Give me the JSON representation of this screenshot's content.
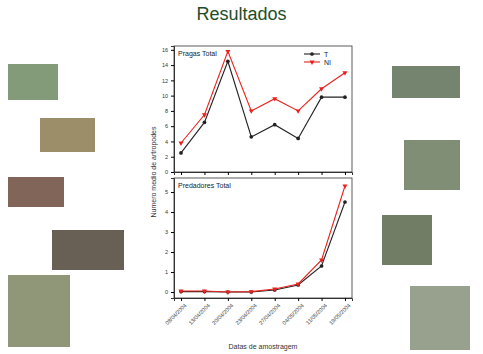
{
  "title": "Resultados",
  "y_label": "Numero medio de artropodes",
  "chart_data": [
    {
      "type": "line",
      "title": "Pragas Total",
      "categories": [
        "08/04/2004",
        "13/04/2004",
        "20/04/2004",
        "23/04/2004",
        "27/04/2004",
        "04/05/2004",
        "11/05/2004",
        "19/05/2004"
      ],
      "series": [
        {
          "name": "T",
          "color": "#222222",
          "marker": "circle",
          "values": [
            2.5,
            6.5,
            14.5,
            4.6,
            6.2,
            4.4,
            9.8,
            9.8
          ]
        },
        {
          "name": "NI",
          "color": "#e8231f",
          "marker": "triangle",
          "values": [
            3.8,
            7.5,
            15.8,
            8.0,
            9.6,
            8.0,
            10.9,
            13.0
          ]
        }
      ],
      "ylim": [
        0,
        16.5
      ],
      "yticks": [
        0,
        2,
        4,
        6,
        8,
        10,
        12,
        14,
        16
      ],
      "legend": "top-right",
      "tick_labels": "y"
    },
    {
      "type": "line",
      "title": "Predadores Total",
      "categories": [
        "08/04/2004",
        "13/04/2004",
        "20/04/2004",
        "23/04/2004",
        "27/04/2004",
        "04/05/2004",
        "11/05/2004",
        "19/05/2004"
      ],
      "series": [
        {
          "name": "T",
          "color": "#222222",
          "marker": "circle",
          "values": [
            0.02,
            0.02,
            0,
            0,
            0.1,
            0.35,
            1.3,
            4.5
          ]
        },
        {
          "name": "NI",
          "color": "#e8231f",
          "marker": "triangle",
          "values": [
            0.05,
            0.05,
            0,
            0.02,
            0.15,
            0.4,
            1.6,
            5.3
          ]
        }
      ],
      "ylim": [
        -0.3,
        5.7
      ],
      "yticks": [
        0,
        1,
        2,
        3,
        4,
        5
      ],
      "x_label": "Datas de amostragem"
    }
  ]
}
